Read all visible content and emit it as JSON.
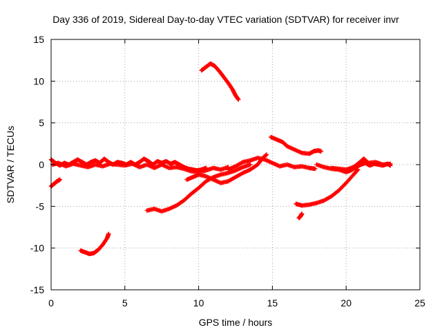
{
  "chart_data": {
    "type": "scatter",
    "title": "Day 336 of 2019, Sidereal Day-to-day VTEC variation (SDTVAR) for receiver invr",
    "xlabel": "GPS time / hours",
    "ylabel": "SDTVAR / TECUs",
    "xlim": [
      0,
      25
    ],
    "ylim": [
      -15,
      15
    ],
    "x_ticks": [
      0,
      5,
      10,
      15,
      20,
      25
    ],
    "y_ticks": [
      -15,
      -10,
      -5,
      0,
      5,
      10,
      15
    ],
    "x_tick_labels": [
      "0",
      "5",
      "10",
      "15",
      "20",
      "25"
    ],
    "y_tick_labels": [
      "-15",
      "-10",
      "-5",
      "0",
      "5",
      "10",
      "15"
    ],
    "grid": true,
    "marker": "+",
    "color": "#ff0000",
    "series": [
      {
        "name": "arc-early-drop",
        "points": [
          [
            0.0,
            -2.6
          ],
          [
            0.2,
            -2.3
          ],
          [
            0.4,
            -2.0
          ],
          [
            0.6,
            -1.8
          ]
        ]
      },
      {
        "name": "arc-baseline-1",
        "points": [
          [
            0.0,
            0.6
          ],
          [
            0.3,
            0.2
          ],
          [
            0.6,
            -0.1
          ],
          [
            0.9,
            0.2
          ],
          [
            1.2,
            0.0
          ],
          [
            1.5,
            0.3
          ],
          [
            1.8,
            0.6
          ],
          [
            2.1,
            0.3
          ],
          [
            2.4,
            0.0
          ],
          [
            2.7,
            0.3
          ],
          [
            3.0,
            0.5
          ],
          [
            3.3,
            0.2
          ],
          [
            3.6,
            0.7
          ],
          [
            3.9,
            0.3
          ],
          [
            4.2,
            0.0
          ],
          [
            4.5,
            0.3
          ],
          [
            4.8,
            0.2
          ],
          [
            5.1,
            0.0
          ],
          [
            5.4,
            0.3
          ],
          [
            5.7,
            0.0
          ],
          [
            6.0,
            0.3
          ],
          [
            6.3,
            0.7
          ],
          [
            6.6,
            0.4
          ],
          [
            6.9,
            0.0
          ],
          [
            7.2,
            0.4
          ],
          [
            7.5,
            0.2
          ],
          [
            7.8,
            0.4
          ],
          [
            8.1,
            0.1
          ],
          [
            8.4,
            0.3
          ],
          [
            8.7,
            0.0
          ],
          [
            9.0,
            -0.3
          ],
          [
            9.3,
            -0.5
          ],
          [
            9.6,
            -0.6
          ],
          [
            9.9,
            -0.7
          ],
          [
            10.2,
            -0.6
          ],
          [
            10.5,
            -0.4
          ]
        ]
      },
      {
        "name": "arc-baseline-2",
        "points": [
          [
            0.1,
            0.0
          ],
          [
            0.5,
            0.2
          ],
          [
            1.0,
            -0.2
          ],
          [
            1.5,
            0.1
          ],
          [
            2.0,
            -0.1
          ],
          [
            2.5,
            -0.3
          ],
          [
            3.0,
            0.0
          ],
          [
            3.5,
            -0.2
          ],
          [
            4.0,
            0.1
          ],
          [
            4.5,
            0.0
          ],
          [
            5.0,
            -0.1
          ],
          [
            5.5,
            0.1
          ],
          [
            6.0,
            -0.3
          ],
          [
            6.5,
            0.0
          ],
          [
            7.0,
            -0.4
          ],
          [
            7.5,
            0.0
          ],
          [
            8.0,
            -0.4
          ],
          [
            8.5,
            -0.3
          ],
          [
            9.0,
            -0.5
          ],
          [
            9.5,
            -0.8
          ],
          [
            10.0,
            -0.9
          ],
          [
            10.5,
            -0.7
          ],
          [
            11.0,
            -0.4
          ],
          [
            11.5,
            -0.6
          ],
          [
            12.0,
            -0.3
          ]
        ]
      },
      {
        "name": "arc-low-left",
        "points": [
          [
            2.0,
            -10.3
          ],
          [
            2.3,
            -10.5
          ],
          [
            2.6,
            -10.7
          ],
          [
            2.9,
            -10.6
          ],
          [
            3.2,
            -10.2
          ],
          [
            3.5,
            -9.6
          ],
          [
            3.8,
            -8.8
          ],
          [
            3.9,
            -8.3
          ]
        ]
      },
      {
        "name": "arc-high-peak",
        "points": [
          [
            10.2,
            11.3
          ],
          [
            10.5,
            11.7
          ],
          [
            10.8,
            12.1
          ],
          [
            11.1,
            11.8
          ],
          [
            11.4,
            11.2
          ],
          [
            11.7,
            10.5
          ],
          [
            12.0,
            9.8
          ],
          [
            12.3,
            9.0
          ],
          [
            12.5,
            8.3
          ],
          [
            12.7,
            7.8
          ]
        ]
      },
      {
        "name": "arc-rising-mid",
        "points": [
          [
            6.5,
            -5.5
          ],
          [
            7.0,
            -5.3
          ],
          [
            7.5,
            -5.6
          ],
          [
            8.0,
            -5.3
          ],
          [
            8.5,
            -4.9
          ],
          [
            9.0,
            -4.3
          ],
          [
            9.5,
            -3.5
          ],
          [
            10.0,
            -2.8
          ],
          [
            10.5,
            -2.0
          ],
          [
            11.0,
            -1.5
          ],
          [
            11.5,
            -1.2
          ],
          [
            12.0,
            -1.0
          ],
          [
            12.5,
            -0.7
          ],
          [
            13.0,
            -0.3
          ],
          [
            13.5,
            0.0
          ]
        ]
      },
      {
        "name": "arc-crossing",
        "points": [
          [
            9.2,
            -1.8
          ],
          [
            9.6,
            -1.5
          ],
          [
            10.0,
            -1.2
          ],
          [
            10.5,
            -1.4
          ],
          [
            11.0,
            -1.8
          ],
          [
            11.5,
            -2.2
          ],
          [
            12.0,
            -2.0
          ],
          [
            12.5,
            -1.5
          ],
          [
            13.0,
            -1.0
          ],
          [
            13.5,
            -0.6
          ],
          [
            14.0,
            0.0
          ],
          [
            14.3,
            0.7
          ],
          [
            14.6,
            1.2
          ]
        ]
      },
      {
        "name": "arc-mid-cluster",
        "points": [
          [
            12.0,
            -0.6
          ],
          [
            12.5,
            -0.2
          ],
          [
            13.0,
            0.3
          ],
          [
            13.5,
            0.5
          ],
          [
            14.0,
            0.8
          ],
          [
            14.5,
            0.6
          ],
          [
            15.0,
            0.2
          ],
          [
            15.5,
            -0.2
          ],
          [
            16.0,
            0.0
          ],
          [
            16.5,
            -0.3
          ],
          [
            17.0,
            -0.2
          ],
          [
            17.5,
            -0.4
          ],
          [
            17.9,
            -0.5
          ]
        ]
      },
      {
        "name": "arc-upper-mid",
        "points": [
          [
            14.9,
            3.3
          ],
          [
            15.3,
            3.0
          ],
          [
            15.7,
            2.7
          ],
          [
            16.0,
            2.2
          ],
          [
            16.5,
            1.8
          ],
          [
            17.0,
            1.4
          ],
          [
            17.5,
            1.3
          ],
          [
            17.8,
            1.6
          ],
          [
            18.1,
            1.7
          ],
          [
            18.3,
            1.6
          ]
        ]
      },
      {
        "name": "arc-low-right",
        "points": [
          [
            16.6,
            -4.7
          ],
          [
            17.0,
            -4.9
          ],
          [
            17.5,
            -4.8
          ],
          [
            18.0,
            -4.6
          ],
          [
            18.5,
            -4.3
          ],
          [
            19.0,
            -3.8
          ],
          [
            19.5,
            -3.1
          ],
          [
            20.0,
            -2.2
          ],
          [
            20.5,
            -1.2
          ],
          [
            20.8,
            -0.6
          ]
        ]
      },
      {
        "name": "arc-dip",
        "points": [
          [
            16.8,
            -6.4
          ],
          [
            16.9,
            -6.2
          ],
          [
            17.0,
            -5.9
          ]
        ]
      },
      {
        "name": "arc-right-baseline",
        "points": [
          [
            18.0,
            0.0
          ],
          [
            18.5,
            -0.3
          ],
          [
            19.0,
            -0.5
          ],
          [
            19.5,
            -0.6
          ],
          [
            20.0,
            -0.9
          ],
          [
            20.3,
            -0.7
          ],
          [
            20.6,
            -0.4
          ],
          [
            21.0,
            0.0
          ],
          [
            21.3,
            0.2
          ],
          [
            21.6,
            -0.1
          ],
          [
            21.9,
            0.1
          ],
          [
            22.2,
            0.0
          ],
          [
            22.5,
            -0.1
          ],
          [
            22.8,
            0.1
          ],
          [
            23.0,
            -0.1
          ]
        ]
      },
      {
        "name": "arc-right-upper",
        "points": [
          [
            19.0,
            -0.4
          ],
          [
            19.5,
            -0.5
          ],
          [
            20.0,
            -0.6
          ],
          [
            20.5,
            -0.3
          ],
          [
            21.0,
            0.4
          ],
          [
            21.2,
            0.7
          ],
          [
            21.5,
            0.2
          ],
          [
            22.0,
            0.3
          ],
          [
            22.5,
            0.0
          ],
          [
            23.0,
            0.1
          ]
        ]
      }
    ]
  }
}
